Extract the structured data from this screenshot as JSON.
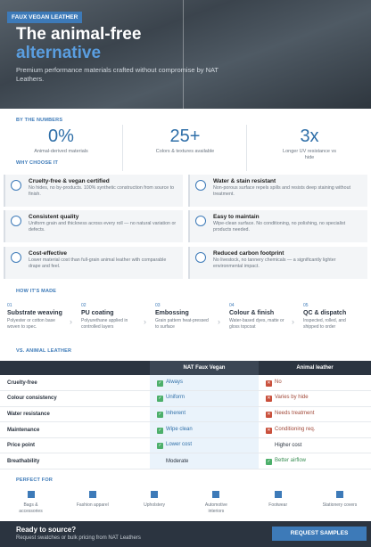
{
  "hero": {
    "badge": "FAUX VEGAN LEATHER",
    "title": "The animal-free",
    "title_highlight": "alternative",
    "subtitle": "Premium performance materials crafted without compromise by NAT Leathers."
  },
  "numbers": {
    "label": "BY THE NUMBERS",
    "items": [
      {
        "value": "0%",
        "label": "Animal-derived materials"
      },
      {
        "value": "25+",
        "label": "Colors & textures available"
      },
      {
        "value": "3x",
        "label": "Longer UV resistance vs hide"
      }
    ]
  },
  "why": {
    "label": "WHY CHOOSE IT",
    "items": [
      {
        "title": "Cruelty-free & vegan certified",
        "text": "No hides, no by-products. 100% synthetic construction from source to finish."
      },
      {
        "title": "Water & stain resistant",
        "text": "Non-porous surface repels spills and resists deep staining without treatment."
      },
      {
        "title": "Consistent quality",
        "text": "Uniform grain and thickness across every roll — no natural variation or defects."
      },
      {
        "title": "Easy to maintain",
        "text": "Wipe-clean surface. No conditioning, no polishing, no specialist products needed."
      },
      {
        "title": "Cost-effective",
        "text": "Lower material cost than full-grain animal leather with comparable drape and feel."
      },
      {
        "title": "Reduced carbon footprint",
        "text": "No livestock, no tannery chemicals — a significantly lighter environmental impact."
      }
    ]
  },
  "how": {
    "label": "HOW IT'S MADE",
    "steps": [
      {
        "num": "01",
        "title": "Substrate weaving",
        "text": "Polyester or cotton base woven to spec."
      },
      {
        "num": "02",
        "title": "PU coating",
        "text": "Polyurethane applied in controlled layers"
      },
      {
        "num": "03",
        "title": "Embossing",
        "text": "Grain pattern heat-pressed to surface"
      },
      {
        "num": "04",
        "title": "Colour & finish",
        "text": "Water-based dyes, matte or gloss topcoat"
      },
      {
        "num": "05",
        "title": "QC & dispatch",
        "text": "Inspected, rolled, and shipped to order"
      }
    ]
  },
  "vs": {
    "label": "VS. ANIMAL LEATHER",
    "columns": [
      "NAT Faux Vegan",
      "Animal leather"
    ],
    "rows": [
      [
        "Cruelty-free",
        "Always",
        "No"
      ],
      [
        "Colour consistency",
        "Uniform",
        "Varies by hide"
      ],
      [
        "Water resistance",
        "Inherent",
        "Needs treatment"
      ],
      [
        "Maintenance",
        "Wipe clean",
        "Conditioning req."
      ],
      [
        "Price point",
        "Lower cost",
        "Higher cost"
      ],
      [
        "Breathability",
        "Moderate",
        "Better airflow"
      ]
    ]
  },
  "perfect": {
    "label": "PERFECT FOR",
    "items": [
      "Bags & accessories",
      "Fashion apparel",
      "Upholstery",
      "Automotive interiors",
      "Footwear",
      "Stationery covers"
    ]
  },
  "footer": {
    "title": "Ready to source?",
    "text": "Request swatches or bulk pricing from NAT Leathers",
    "button": "REQUEST SAMPLES"
  }
}
